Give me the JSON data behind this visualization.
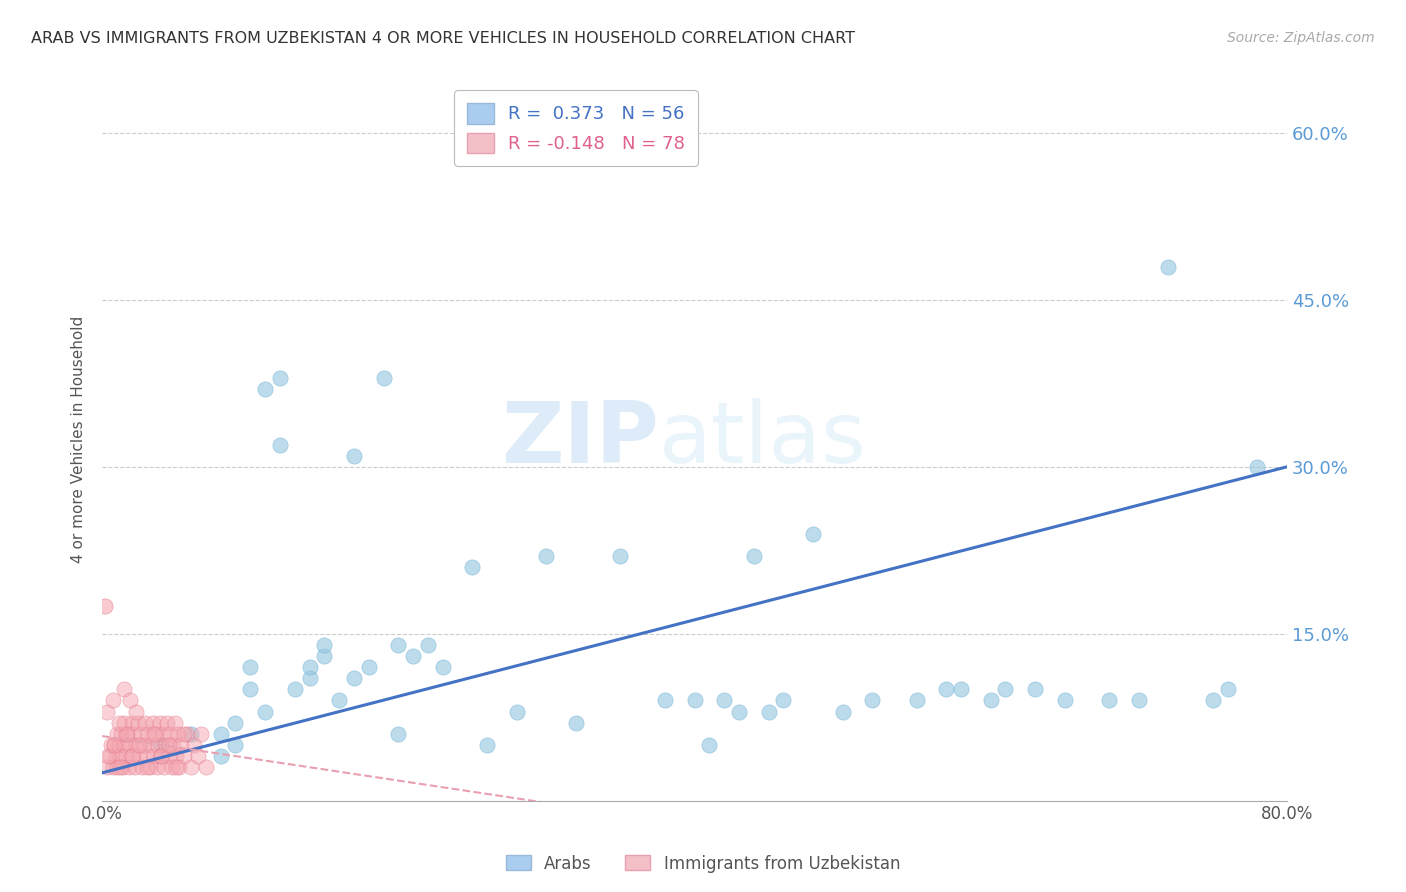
{
  "title": "ARAB VS IMMIGRANTS FROM UZBEKISTAN 4 OR MORE VEHICLES IN HOUSEHOLD CORRELATION CHART",
  "source": "Source: ZipAtlas.com",
  "ylabel": "4 or more Vehicles in Household",
  "xlim": [
    0.0,
    0.8
  ],
  "ylim": [
    0.0,
    0.65
  ],
  "xticks": [
    0.0,
    0.1,
    0.2,
    0.3,
    0.4,
    0.5,
    0.6,
    0.7,
    0.8
  ],
  "xticklabels": [
    "0.0%",
    "",
    "",
    "",
    "",
    "",
    "",
    "",
    "80.0%"
  ],
  "ytick_positions": [
    0.15,
    0.3,
    0.45,
    0.6
  ],
  "ytick_labels": [
    "15.0%",
    "30.0%",
    "45.0%",
    "60.0%"
  ],
  "grid_color": "#cccccc",
  "background_color": "#ffffff",
  "watermark_zip": "ZIP",
  "watermark_atlas": "atlas",
  "arab_color": "#92c5de",
  "uzbek_color": "#f4a5b0",
  "arab_line_color": "#4472c4",
  "uzbek_line_color": "#e8a0b0",
  "arab_scatter_x": [
    0.04,
    0.06,
    0.08,
    0.09,
    0.1,
    0.1,
    0.11,
    0.12,
    0.12,
    0.13,
    0.14,
    0.14,
    0.15,
    0.16,
    0.17,
    0.18,
    0.19,
    0.2,
    0.21,
    0.22,
    0.23,
    0.25,
    0.26,
    0.28,
    0.3,
    0.32,
    0.35,
    0.38,
    0.4,
    0.41,
    0.42,
    0.43,
    0.44,
    0.45,
    0.46,
    0.48,
    0.5,
    0.52,
    0.55,
    0.57,
    0.58,
    0.6,
    0.61,
    0.63,
    0.65,
    0.68,
    0.7,
    0.72,
    0.75,
    0.76,
    0.78,
    0.15,
    0.17,
    0.2,
    0.08,
    0.09,
    0.11
  ],
  "arab_scatter_y": [
    0.05,
    0.06,
    0.04,
    0.05,
    0.12,
    0.1,
    0.37,
    0.38,
    0.32,
    0.1,
    0.11,
    0.12,
    0.13,
    0.09,
    0.31,
    0.12,
    0.38,
    0.06,
    0.13,
    0.14,
    0.12,
    0.21,
    0.05,
    0.08,
    0.22,
    0.07,
    0.22,
    0.09,
    0.09,
    0.05,
    0.09,
    0.08,
    0.22,
    0.08,
    0.09,
    0.24,
    0.08,
    0.09,
    0.09,
    0.1,
    0.1,
    0.09,
    0.1,
    0.1,
    0.09,
    0.09,
    0.09,
    0.48,
    0.09,
    0.1,
    0.3,
    0.14,
    0.11,
    0.14,
    0.06,
    0.07,
    0.08
  ],
  "uzbek_scatter_x": [
    0.003,
    0.005,
    0.006,
    0.007,
    0.008,
    0.009,
    0.01,
    0.01,
    0.011,
    0.012,
    0.013,
    0.014,
    0.015,
    0.015,
    0.016,
    0.017,
    0.018,
    0.019,
    0.02,
    0.02,
    0.021,
    0.022,
    0.023,
    0.024,
    0.025,
    0.026,
    0.027,
    0.028,
    0.029,
    0.03,
    0.031,
    0.032,
    0.033,
    0.034,
    0.035,
    0.036,
    0.037,
    0.038,
    0.039,
    0.04,
    0.041,
    0.042,
    0.043,
    0.044,
    0.045,
    0.046,
    0.047,
    0.048,
    0.049,
    0.05,
    0.051,
    0.052,
    0.053,
    0.055,
    0.057,
    0.06,
    0.062,
    0.065,
    0.067,
    0.07,
    0.004,
    0.008,
    0.012,
    0.016,
    0.02,
    0.025,
    0.03,
    0.035,
    0.04,
    0.045,
    0.05,
    0.055,
    0.003,
    0.007,
    0.011,
    0.015,
    0.019,
    0.023
  ],
  "uzbek_scatter_y": [
    0.03,
    0.04,
    0.05,
    0.03,
    0.05,
    0.04,
    0.06,
    0.03,
    0.05,
    0.04,
    0.06,
    0.03,
    0.05,
    0.07,
    0.04,
    0.06,
    0.03,
    0.05,
    0.07,
    0.04,
    0.06,
    0.03,
    0.05,
    0.07,
    0.04,
    0.06,
    0.03,
    0.05,
    0.07,
    0.04,
    0.06,
    0.03,
    0.05,
    0.07,
    0.04,
    0.06,
    0.03,
    0.05,
    0.07,
    0.04,
    0.06,
    0.03,
    0.05,
    0.07,
    0.04,
    0.06,
    0.03,
    0.05,
    0.07,
    0.04,
    0.06,
    0.03,
    0.05,
    0.04,
    0.06,
    0.03,
    0.05,
    0.04,
    0.06,
    0.03,
    0.04,
    0.05,
    0.03,
    0.06,
    0.04,
    0.05,
    0.03,
    0.06,
    0.04,
    0.05,
    0.03,
    0.06,
    0.08,
    0.09,
    0.07,
    0.1,
    0.09,
    0.08
  ],
  "uzbek_outlier_x": [
    0.002
  ],
  "uzbek_outlier_y": [
    0.175
  ]
}
